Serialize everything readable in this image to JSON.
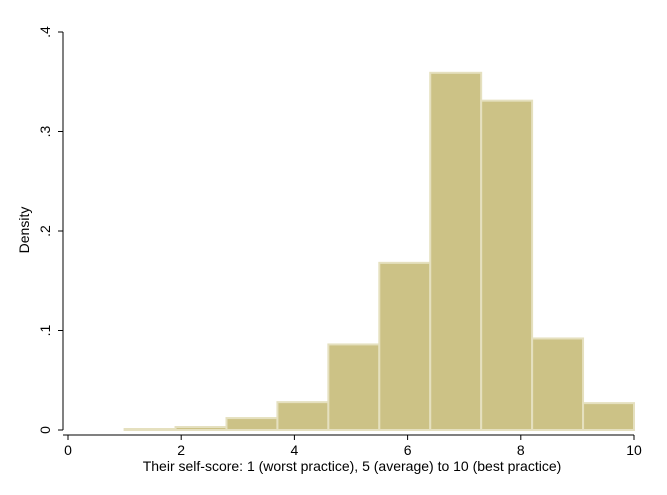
{
  "colors": {
    "bar_fill": "#CCC286",
    "bar_edge": "#E5E0BF",
    "axis": "#000000",
    "background": "#FFFFFF"
  },
  "chart_data": {
    "type": "bar",
    "title": "",
    "xlabel": "Their self-score: 1 (worst practice), 5 (average) to 10 (best practice)",
    "ylabel": "Density",
    "xlim": [
      0,
      10
    ],
    "ylim": [
      0,
      0.4
    ],
    "xticks": [
      0,
      2,
      4,
      6,
      8,
      10
    ],
    "xtick_labels": [
      "0",
      "2",
      "4",
      "6",
      "8",
      "10"
    ],
    "yticks": [
      0,
      0.1,
      0.2,
      0.3,
      0.4
    ],
    "ytick_labels": [
      "0",
      ".1",
      ".2",
      ".3",
      ".4"
    ],
    "grid": false,
    "legend": "none",
    "bins": [
      {
        "start": 1.0,
        "end": 1.9,
        "value": 0.001
      },
      {
        "start": 1.9,
        "end": 2.8,
        "value": 0.003
      },
      {
        "start": 2.8,
        "end": 3.7,
        "value": 0.012
      },
      {
        "start": 3.7,
        "end": 4.6,
        "value": 0.028
      },
      {
        "start": 4.6,
        "end": 5.5,
        "value": 0.086
      },
      {
        "start": 5.5,
        "end": 6.4,
        "value": 0.168
      },
      {
        "start": 6.4,
        "end": 7.3,
        "value": 0.359
      },
      {
        "start": 7.3,
        "end": 8.2,
        "value": 0.331
      },
      {
        "start": 8.2,
        "end": 9.1,
        "value": 0.092
      },
      {
        "start": 9.1,
        "end": 10.0,
        "value": 0.027
      }
    ]
  }
}
